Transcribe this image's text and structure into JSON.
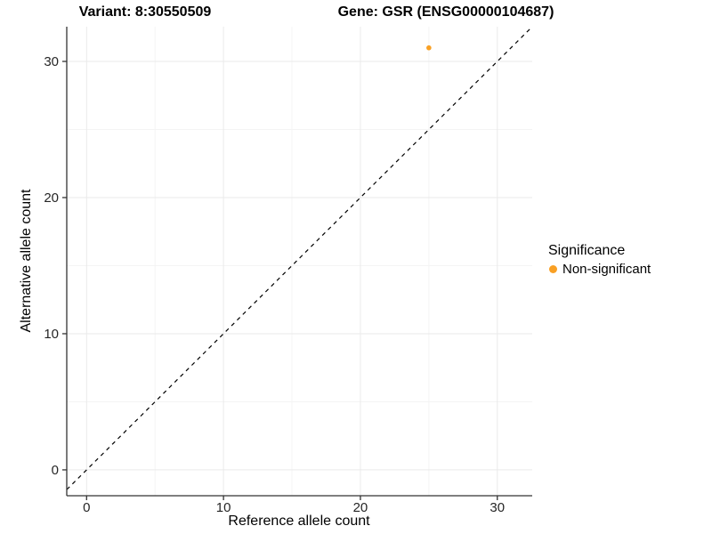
{
  "header": {
    "variant_title": "Variant: 8:30550509",
    "gene_title": "Gene: GSR (ENSG00000104687)"
  },
  "chart_data": {
    "type": "scatter",
    "xlabel": "Reference allele count",
    "ylabel": "Alternative allele count",
    "xlim": [
      -1.45,
      32.55
    ],
    "ylim": [
      -1.9,
      32.55
    ],
    "xticks": [
      0,
      10,
      20,
      30
    ],
    "yticks": [
      0,
      10,
      20,
      30
    ],
    "minor_xticks": [
      5,
      15,
      25
    ],
    "minor_yticks": [
      5,
      15,
      25
    ],
    "grid": "on",
    "legend_position": "right",
    "reference_line": {
      "type": "identity",
      "style": "dashed",
      "color": "#000000"
    },
    "series": [
      {
        "name": "Non-significant",
        "color": "#F9A024",
        "points": [
          {
            "x": 25,
            "y": 31
          }
        ]
      }
    ],
    "legend": {
      "title": "Significance",
      "items": [
        {
          "label": "Non-significant",
          "color": "#F9A024"
        }
      ]
    },
    "colors": {
      "background": "#FFFFFF",
      "grid_major": "#EAEAEA",
      "grid_minor": "#F4F4F4",
      "axis_line": "#333333",
      "tick_text": "#262626"
    }
  }
}
